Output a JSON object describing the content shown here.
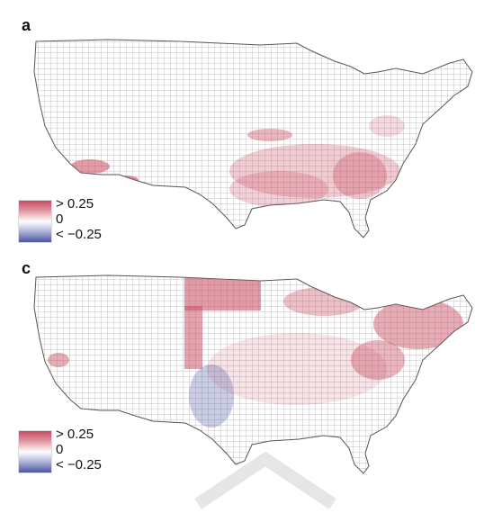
{
  "panels": [
    {
      "label": "a",
      "legend": {
        "high": "> 0.25",
        "mid": "0",
        "low": "< −0.25"
      },
      "colors": {
        "high": "#c8485e",
        "low": "#4b56a0",
        "neutral": "#ffffff",
        "border": "#7a7a7a"
      }
    },
    {
      "label": "c",
      "legend": {
        "high": "> 0.25",
        "mid": "0",
        "low": "< −0.25"
      },
      "colors": {
        "high": "#c8485e",
        "low": "#4b56a0",
        "neutral": "#ffffff",
        "border": "#7a7a7a"
      }
    }
  ]
}
